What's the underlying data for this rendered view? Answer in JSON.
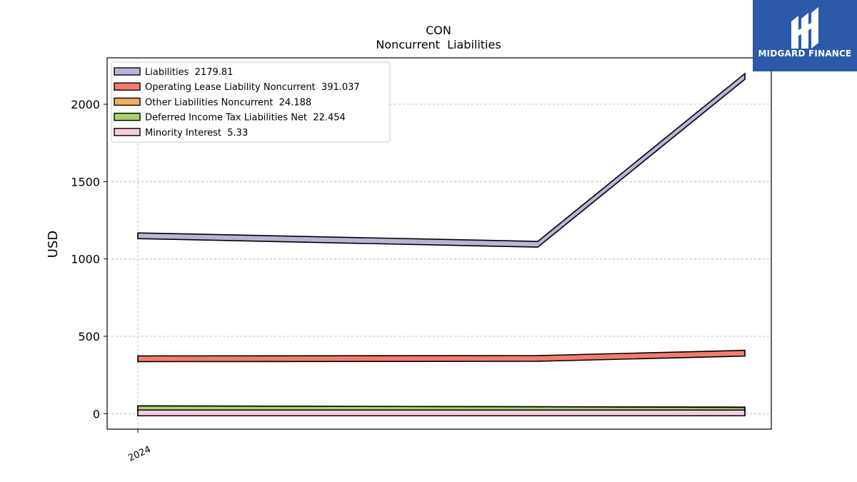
{
  "brand": {
    "name": "MIDGARD FINANCE",
    "bg_color": "#2d5aa8"
  },
  "chart_data": {
    "type": "area",
    "title": "CON",
    "subtitle": "Noncurrent  Liabilities",
    "ylabel": "USD",
    "xlabel": "",
    "ylim": [
      -100,
      2300
    ],
    "yticks": [
      0,
      500,
      1000,
      1500,
      2000
    ],
    "x_tick_labels": [
      "2024"
    ],
    "grid": true,
    "legend_position": "top-left",
    "series": [
      {
        "name": "Liabilities",
        "legend_value": "2179.81",
        "color": "#b8b4d9",
        "values": [
          1150,
          1095,
          2180
        ]
      },
      {
        "name": "Operating Lease Liability Noncurrent",
        "legend_value": "391.037",
        "color": "#f47c6c",
        "values": [
          355,
          357,
          391
        ]
      },
      {
        "name": "Other Liabilities Noncurrent",
        "legend_value": "24.188",
        "color": "#f4ad5f",
        "values": [
          32,
          26,
          24
        ]
      },
      {
        "name": "Deferred Income Tax Liabilities Net",
        "legend_value": "22.454",
        "color": "#a7d46a",
        "values": [
          32,
          26,
          22
        ]
      },
      {
        "name": "Minority Interest",
        "legend_value": "5.33",
        "color": "#f9cbe0",
        "values": [
          5,
          5,
          5
        ]
      }
    ]
  }
}
